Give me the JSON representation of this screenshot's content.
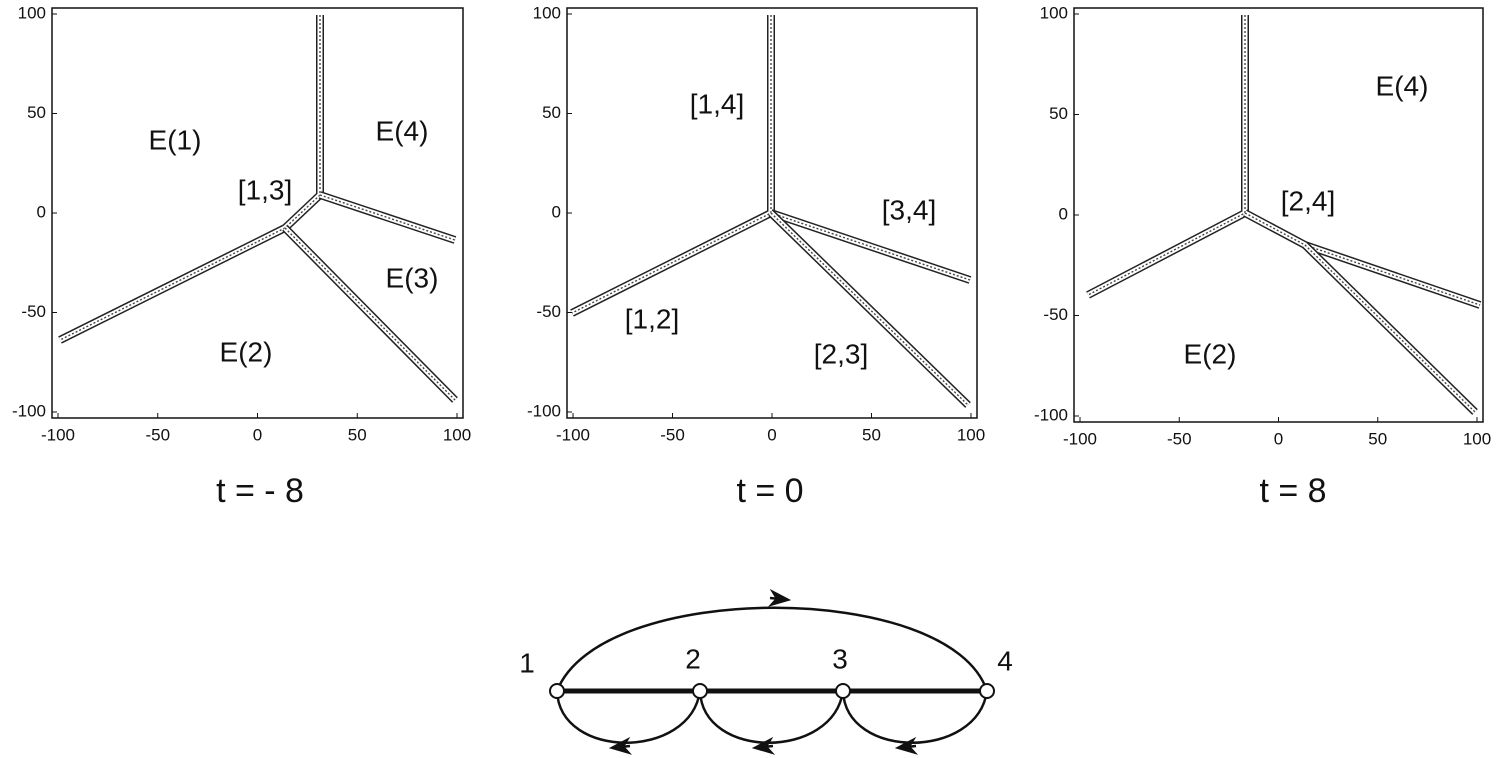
{
  "panels": [
    {
      "xticks": [
        -100,
        -50,
        0,
        50,
        100
      ],
      "yticks": [
        100,
        50,
        0,
        -50,
        -100
      ],
      "labels": [
        "E(1)",
        "E(4)",
        "[1,3]",
        "E(3)",
        "E(2)"
      ],
      "caption": "t = - 8"
    },
    {
      "xticks": [
        -100,
        -50,
        0,
        50,
        100
      ],
      "yticks": [
        100,
        50,
        0,
        -50,
        -100
      ],
      "labels": [
        "[1,4]",
        "[3,4]",
        "[1,2]",
        "[2,3]"
      ],
      "caption": "t = 0"
    },
    {
      "xticks": [
        -100,
        -50,
        0,
        50,
        100
      ],
      "yticks": [
        100,
        50,
        0,
        -50,
        -100
      ],
      "labels": [
        "E(4)",
        "[2,4]",
        "E(2)"
      ],
      "caption": "t = 8"
    }
  ],
  "graph": {
    "nodes": [
      "1",
      "2",
      "3",
      "4"
    ]
  }
}
